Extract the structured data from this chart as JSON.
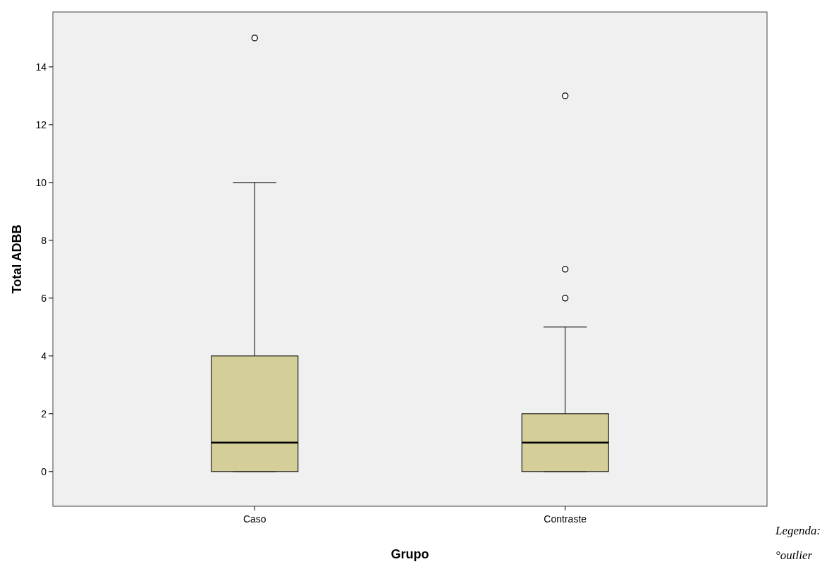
{
  "chart_data": {
    "type": "box",
    "xlabel": "Grupo",
    "ylabel": "Total ADBB",
    "categories": [
      "Caso",
      "Contraste"
    ],
    "series": [
      {
        "color": "#d4cf98",
        "boxes": [
          {
            "low": 0,
            "q1": 0,
            "median": 1,
            "q3": 4,
            "high": 10,
            "outliers": [
              15
            ]
          },
          {
            "low": 0,
            "q1": 0,
            "median": 1,
            "q3": 2,
            "high": 5,
            "outliers": [
              6,
              7,
              13
            ]
          }
        ]
      }
    ],
    "ylim": [
      -1.2,
      15.9
    ],
    "yticks": [
      0,
      2,
      4,
      6,
      8,
      10,
      12,
      14
    ],
    "grid": false,
    "annotations": [
      "Legenda:",
      "°outlier"
    ]
  }
}
